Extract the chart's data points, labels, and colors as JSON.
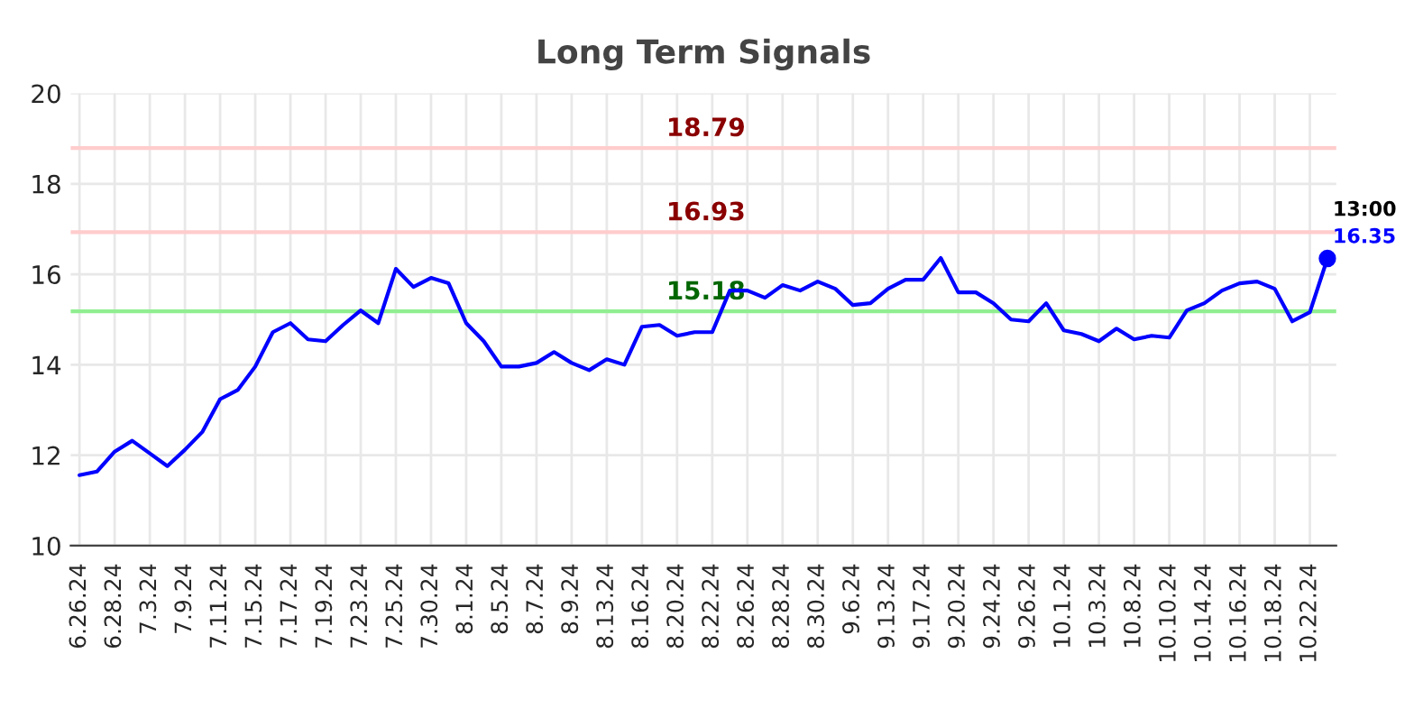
{
  "chart_data": {
    "type": "line",
    "title": "Long Term Signals",
    "categories": [
      "6.26.24",
      null,
      "6.28.24",
      null,
      "7.3.24",
      null,
      "7.9.24",
      null,
      "7.11.24",
      null,
      "7.15.24",
      null,
      "7.17.24",
      null,
      "7.19.24",
      null,
      "7.23.24",
      null,
      "7.25.24",
      null,
      "7.30.24",
      null,
      "8.1.24",
      null,
      "8.5.24",
      null,
      "8.7.24",
      null,
      "8.9.24",
      null,
      "8.13.24",
      null,
      "8.16.24",
      null,
      "8.20.24",
      null,
      "8.22.24",
      null,
      "8.26.24",
      null,
      "8.28.24",
      null,
      "8.30.24",
      null,
      "9.6.24",
      null,
      "9.13.24",
      null,
      "9.17.24",
      null,
      "9.20.24",
      null,
      "9.24.24",
      null,
      "9.26.24",
      null,
      "10.1.24",
      null,
      "10.3.24",
      null,
      "10.8.24",
      null,
      "10.10.24",
      null,
      "10.14.24",
      null,
      "10.16.24",
      null,
      "10.18.24",
      null,
      "10.22.24",
      null
    ],
    "series": [
      {
        "color": "#0000ff",
        "values": [
          11.56,
          11.64,
          12.08,
          12.32,
          12.04,
          11.76,
          12.12,
          12.52,
          13.24,
          13.44,
          13.96,
          14.72,
          14.92,
          14.56,
          14.52,
          14.88,
          15.2,
          14.92,
          16.12,
          15.72,
          15.92,
          15.8,
          14.92,
          14.52,
          13.96,
          13.96,
          14.04,
          14.28,
          14.04,
          13.88,
          14.12,
          14.0,
          14.84,
          14.88,
          14.64,
          14.72,
          14.72,
          15.64,
          15.64,
          15.48,
          15.76,
          15.64,
          15.84,
          15.68,
          15.32,
          15.36,
          15.68,
          15.88,
          15.88,
          16.36,
          15.6,
          15.6,
          15.36,
          15.0,
          14.96,
          15.36,
          14.76,
          14.68,
          14.52,
          14.8,
          14.56,
          14.64,
          14.6,
          15.2,
          15.36,
          15.64,
          15.8,
          15.84,
          15.68,
          14.96,
          15.16,
          16.35
        ],
        "value_labels": [
          null,
          null,
          null,
          null,
          null,
          null,
          null,
          null,
          null,
          null,
          null,
          null,
          null,
          null,
          null,
          null,
          null,
          null,
          null,
          null,
          null,
          null,
          null,
          null,
          null,
          null,
          null,
          null,
          null,
          null,
          null,
          null,
          null,
          null,
          null,
          null,
          null,
          null,
          null,
          null,
          null,
          null,
          null,
          null,
          null,
          null,
          null,
          null,
          null,
          null,
          null,
          null,
          null,
          null,
          null,
          null,
          null,
          null,
          null,
          null,
          null,
          null,
          null,
          null,
          null,
          null,
          null,
          null,
          null,
          null,
          null,
          "16.35"
        ]
      }
    ],
    "ref_lines": [
      {
        "axis": "y",
        "value": 18.79,
        "label": "18.79",
        "color": "#ffcccc"
      },
      {
        "axis": "y",
        "value": 16.93,
        "label": "16.93",
        "color": "#ffcccc"
      },
      {
        "axis": "y",
        "value": 15.18,
        "label": "15.18",
        "color": "#90ee90"
      }
    ],
    "annotations": [
      "13:00"
    ],
    "ylim": [
      10,
      20
    ],
    "yticks": [
      10,
      12,
      14,
      16,
      18,
      20
    ],
    "grid": true
  }
}
